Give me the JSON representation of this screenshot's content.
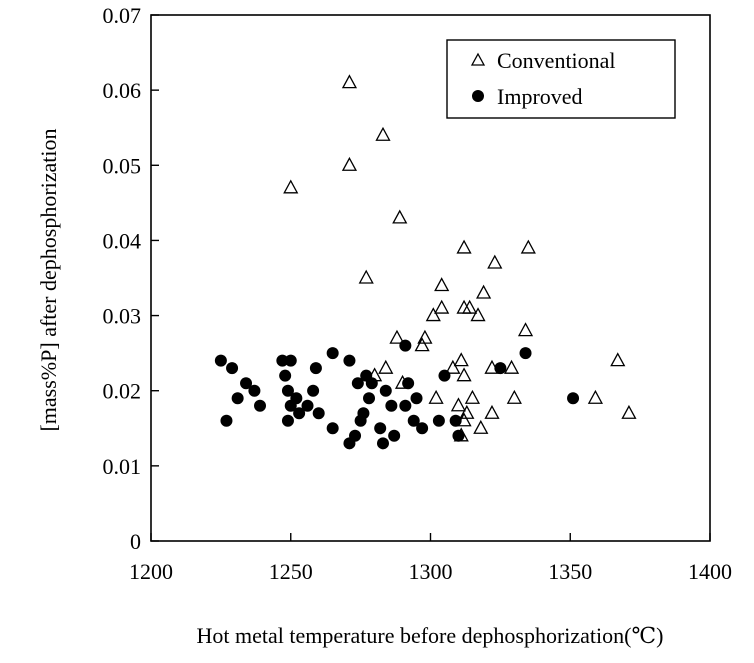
{
  "chart_data": {
    "type": "scatter",
    "title": "",
    "xlabel": "Hot metal temperature before dephosphorization(℃)",
    "ylabel": "[mass%P] after dephosphorization",
    "xlim": [
      1200,
      1400
    ],
    "ylim": [
      0,
      0.07
    ],
    "xticks": [
      "1200",
      "1250",
      "1300",
      "1350",
      "1400"
    ],
    "yticks": [
      "0",
      "0.01",
      "0.02",
      "0.03",
      "0.04",
      "0.05",
      "0.06",
      "0.07"
    ],
    "grid": false,
    "legend_position": "top-right",
    "series": [
      {
        "name": "Conventional",
        "marker": "open-triangle",
        "points": [
          [
            1271,
            0.061
          ],
          [
            1283,
            0.054
          ],
          [
            1271,
            0.05
          ],
          [
            1250,
            0.047
          ],
          [
            1289,
            0.043
          ],
          [
            1312,
            0.039
          ],
          [
            1335,
            0.039
          ],
          [
            1323,
            0.037
          ],
          [
            1277,
            0.035
          ],
          [
            1304,
            0.034
          ],
          [
            1319,
            0.033
          ],
          [
            1304,
            0.031
          ],
          [
            1312,
            0.031
          ],
          [
            1314,
            0.031
          ],
          [
            1317,
            0.03
          ],
          [
            1301,
            0.03
          ],
          [
            1334,
            0.028
          ],
          [
            1288,
            0.027
          ],
          [
            1298,
            0.027
          ],
          [
            1297,
            0.026
          ],
          [
            1311,
            0.024
          ],
          [
            1367,
            0.024
          ],
          [
            1284,
            0.023
          ],
          [
            1308,
            0.023
          ],
          [
            1322,
            0.023
          ],
          [
            1329,
            0.023
          ],
          [
            1312,
            0.022
          ],
          [
            1280,
            0.022
          ],
          [
            1290,
            0.021
          ],
          [
            1302,
            0.019
          ],
          [
            1315,
            0.019
          ],
          [
            1330,
            0.019
          ],
          [
            1359,
            0.019
          ],
          [
            1310,
            0.018
          ],
          [
            1313,
            0.017
          ],
          [
            1322,
            0.017
          ],
          [
            1371,
            0.017
          ],
          [
            1318,
            0.015
          ],
          [
            1311,
            0.014
          ],
          [
            1312,
            0.016
          ]
        ]
      },
      {
        "name": "Improved",
        "marker": "filled-circle",
        "points": [
          [
            1225,
            0.024
          ],
          [
            1229,
            0.023
          ],
          [
            1227,
            0.016
          ],
          [
            1231,
            0.019
          ],
          [
            1234,
            0.021
          ],
          [
            1237,
            0.02
          ],
          [
            1239,
            0.018
          ],
          [
            1247,
            0.024
          ],
          [
            1250,
            0.024
          ],
          [
            1248,
            0.022
          ],
          [
            1249,
            0.02
          ],
          [
            1250,
            0.018
          ],
          [
            1249,
            0.016
          ],
          [
            1252,
            0.019
          ],
          [
            1253,
            0.017
          ],
          [
            1256,
            0.018
          ],
          [
            1258,
            0.02
          ],
          [
            1259,
            0.023
          ],
          [
            1260,
            0.017
          ],
          [
            1265,
            0.025
          ],
          [
            1265,
            0.015
          ],
          [
            1271,
            0.024
          ],
          [
            1271,
            0.013
          ],
          [
            1273,
            0.014
          ],
          [
            1274,
            0.021
          ],
          [
            1275,
            0.016
          ],
          [
            1277,
            0.022
          ],
          [
            1278,
            0.019
          ],
          [
            1279,
            0.021
          ],
          [
            1282,
            0.015
          ],
          [
            1283,
            0.013
          ],
          [
            1286,
            0.018
          ],
          [
            1287,
            0.014
          ],
          [
            1291,
            0.026
          ],
          [
            1291,
            0.018
          ],
          [
            1292,
            0.021
          ],
          [
            1294,
            0.016
          ],
          [
            1295,
            0.019
          ],
          [
            1297,
            0.015
          ],
          [
            1303,
            0.016
          ],
          [
            1305,
            0.022
          ],
          [
            1309,
            0.016
          ],
          [
            1310,
            0.014
          ],
          [
            1325,
            0.023
          ],
          [
            1334,
            0.025
          ],
          [
            1351,
            0.019
          ],
          [
            1276,
            0.017
          ],
          [
            1284,
            0.02
          ]
        ]
      }
    ]
  },
  "legend": {
    "items": [
      {
        "label": "Conventional"
      },
      {
        "label": "Improved"
      }
    ]
  }
}
